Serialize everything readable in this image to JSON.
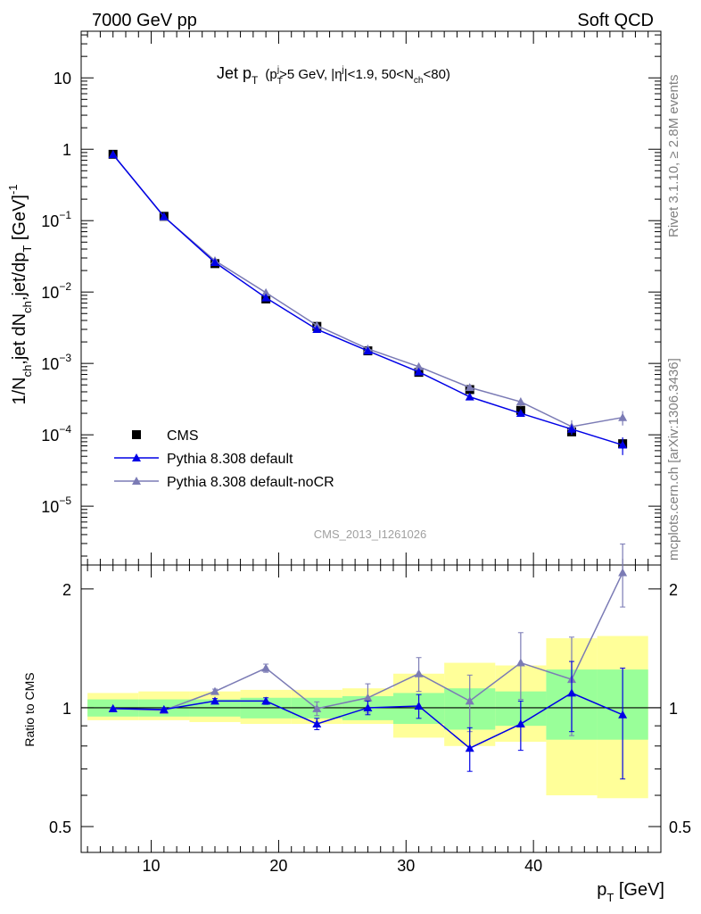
{
  "header": {
    "left": "7000 GeV pp",
    "right": "Soft QCD",
    "side_top": "Rivet 3.1.10, ≥ 2.8M events",
    "side_bottom": "mcplots.cern.ch [arXiv:1306.3436]"
  },
  "chart_data": {
    "type": "line",
    "title": {
      "main": "Jet p",
      "main_sub": "T",
      "cond_open": "(p",
      "cond_sub1": "T",
      "cond_sup1": "j",
      "cond_mid": ">5 GeV, |η",
      "cond_sup2": "j",
      "cond_mid2": "|<1.9, 50<N",
      "cond_sub2": "ch",
      "cond_end": "<80)"
    },
    "analysis_id": "CMS_2013_I1261026",
    "xlabel": {
      "main": "p",
      "sub": "T",
      "unit": " [GeV]"
    },
    "ylabel": "1/N_ch,jet dN_ch,jet/dp_T [GeV]^-1",
    "ylabel_parts": {
      "p1": "1/N",
      "s1": "ch",
      "p2": ",jet dN",
      "s2": "ch",
      "p3": ",jet/dp",
      "s3": "T",
      "p4": " [GeV]",
      "sup": "-1"
    },
    "ratio_ylabel": "Ratio to CMS",
    "x_range": [
      4.5,
      50
    ],
    "x_ticks": [
      10,
      20,
      30,
      40
    ],
    "y_scale": "log",
    "y_range": [
      1.5e-06,
      45
    ],
    "y_tick_labels": [
      {
        "value": 10,
        "base": "10",
        "exp": ""
      },
      {
        "value": 1,
        "base": "1",
        "exp": ""
      },
      {
        "value": 0.1,
        "base": "10",
        "exp": "−1"
      },
      {
        "value": 0.01,
        "base": "10",
        "exp": "−2"
      },
      {
        "value": 0.001,
        "base": "10",
        "exp": "−3"
      },
      {
        "value": 0.0001,
        "base": "10",
        "exp": "−4"
      },
      {
        "value": 1e-05,
        "base": "10",
        "exp": "−5"
      }
    ],
    "ratio_y_range": [
      0.43,
      2.3
    ],
    "ratio_y_ticks": [
      0.5,
      1,
      2
    ],
    "x_bins": [
      [
        5,
        9
      ],
      [
        9,
        13
      ],
      [
        13,
        17
      ],
      [
        17,
        21
      ],
      [
        21,
        25
      ],
      [
        25,
        29
      ],
      [
        29,
        33
      ],
      [
        33,
        37
      ],
      [
        37,
        41
      ],
      [
        41,
        45
      ],
      [
        45,
        49
      ]
    ],
    "x": [
      7,
      11,
      15,
      19,
      23,
      27,
      31,
      35,
      39,
      43,
      47
    ],
    "legend_position": "bottom-left",
    "series": [
      {
        "name": "CMS",
        "marker": "square",
        "color": "#000000",
        "values": [
          0.85,
          0.115,
          0.025,
          0.008,
          0.0033,
          0.0015,
          0.00075,
          0.00043,
          0.00022,
          0.00011,
          7.5e-05
        ],
        "err": [
          0.02,
          0.003,
          0.0006,
          0.0002,
          0.0001,
          5e-05,
          3e-05,
          3e-05,
          2e-05,
          1.2e-05,
          1.2e-05
        ]
      },
      {
        "name": "Pythia 8.308 default",
        "marker": "triangle",
        "color": "#0000e6",
        "values": [
          0.845,
          0.114,
          0.026,
          0.0083,
          0.003,
          0.0015,
          0.00076,
          0.00034,
          0.0002,
          0.00012,
          7.2e-05
        ],
        "err": [
          0.005,
          0.001,
          0.0003,
          0.0001,
          5e-05,
          4e-05,
          3e-05,
          3e-05,
          2e-05,
          2e-05,
          2e-05
        ],
        "ratio": [
          0.995,
          0.99,
          1.04,
          1.04,
          0.91,
          1.0,
          1.01,
          0.79,
          0.91,
          1.09,
          0.96
        ],
        "ratio_err": [
          0.005,
          0.01,
          0.015,
          0.02,
          0.03,
          0.04,
          0.07,
          0.1,
          0.13,
          0.22,
          0.3
        ]
      },
      {
        "name": "Pythia 8.308 default-noCR",
        "marker": "triangle",
        "color": "#7b7bb5",
        "values": [
          0.845,
          0.113,
          0.0275,
          0.0098,
          0.0034,
          0.0016,
          0.0009,
          0.00046,
          0.00029,
          0.00013,
          0.000175
        ],
        "err": [
          0.005,
          0.001,
          0.0003,
          0.00012,
          6e-05,
          4e-05,
          4e-05,
          3e-05,
          4e-05,
          3e-05,
          4e-05
        ],
        "ratio": [
          0.995,
          0.985,
          1.1,
          1.26,
          0.995,
          1.06,
          1.22,
          1.04,
          1.3,
          1.18,
          2.2
        ],
        "ratio_err": [
          0.005,
          0.01,
          0.015,
          0.03,
          0.04,
          0.09,
          0.12,
          0.17,
          0.25,
          0.33,
          0.4
        ]
      }
    ],
    "band_inner": [
      [
        0.95,
        1.05
      ],
      [
        0.95,
        1.05
      ],
      [
        0.95,
        1.05
      ],
      [
        0.94,
        1.06
      ],
      [
        0.94,
        1.06
      ],
      [
        0.93,
        1.07
      ],
      [
        0.91,
        1.09
      ],
      [
        0.88,
        1.12
      ],
      [
        0.9,
        1.1
      ],
      [
        0.83,
        1.25
      ],
      [
        0.83,
        1.25
      ]
    ],
    "band_outer": [
      [
        0.93,
        1.09
      ],
      [
        0.93,
        1.1
      ],
      [
        0.92,
        1.1
      ],
      [
        0.91,
        1.11
      ],
      [
        0.91,
        1.11
      ],
      [
        0.91,
        1.12
      ],
      [
        0.84,
        1.22
      ],
      [
        0.8,
        1.3
      ],
      [
        0.82,
        1.28
      ],
      [
        0.6,
        1.5
      ],
      [
        0.59,
        1.52
      ]
    ],
    "colors": {
      "band_inner": "#99ff99",
      "band_outer": "#ffff99"
    }
  }
}
